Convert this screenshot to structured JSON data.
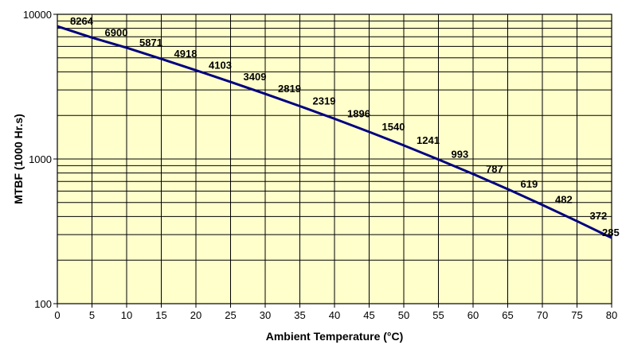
{
  "chart_data": {
    "type": "line",
    "title": "",
    "xlabel": "Ambient Temperature (°C)",
    "ylabel": "MTBF (1000 Hr.s)",
    "xlim": [
      0,
      80
    ],
    "ylim": [
      100,
      10000
    ],
    "y_scale": "log",
    "grid": true,
    "x_ticks": [
      "0",
      "5",
      "10",
      "15",
      "20",
      "25",
      "30",
      "35",
      "40",
      "45",
      "50",
      "55",
      "60",
      "65",
      "70",
      "75",
      "80"
    ],
    "y_ticks": [
      "100",
      "1000",
      "10000"
    ],
    "series": [
      {
        "name": "",
        "color": "#000080",
        "x": [
          0,
          5,
          10,
          15,
          20,
          25,
          30,
          35,
          40,
          45,
          50,
          55,
          60,
          65,
          70,
          75,
          80
        ],
        "y": [
          8264,
          6900,
          5871,
          4918,
          4103,
          3409,
          2819,
          2319,
          1896,
          1540,
          1241,
          993,
          787,
          619,
          482,
          372,
          285
        ]
      }
    ],
    "data_labels": [
      "8264",
      "6900",
      "5871",
      "4918",
      "4103",
      "3409",
      "2819",
      "2319",
      "1896",
      "1540",
      "1241",
      "993",
      "787",
      "619",
      "482",
      "372",
      "285"
    ]
  },
  "colors": {
    "plot_background": "#FFFFCC",
    "grid": "#000000",
    "line": "#000080"
  }
}
